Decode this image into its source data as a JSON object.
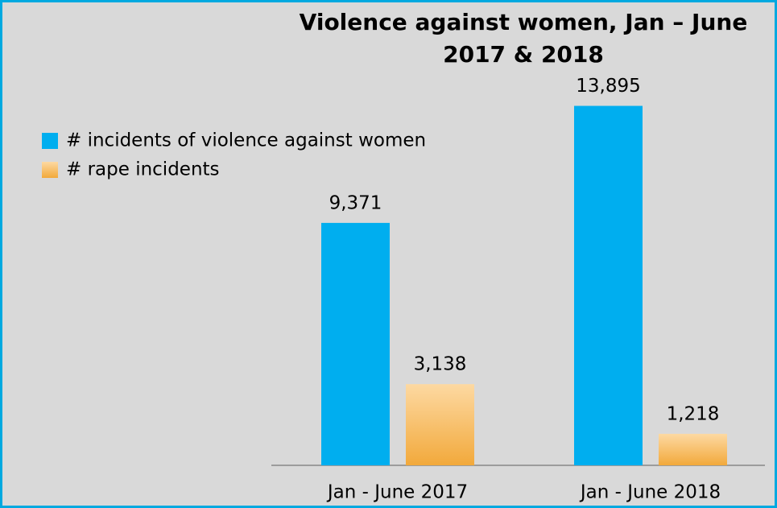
{
  "chart_data": {
    "type": "bar",
    "title": "Violence against women, Jan – June 2017 & 2018",
    "categories": [
      "Jan - June 2017",
      "Jan - June 2018"
    ],
    "series": [
      {
        "name": "# incidents of violence against women",
        "color": "#00aeef",
        "values": [
          9371,
          13895
        ],
        "value_labels": [
          "9,371",
          "13,895"
        ]
      },
      {
        "name": "# rape incidents",
        "color": "#f2a93b",
        "values": [
          3138,
          1218
        ],
        "value_labels": [
          "3,138",
          "1,218"
        ]
      }
    ],
    "ylim": [
      0,
      15000
    ],
    "legend": "left"
  }
}
